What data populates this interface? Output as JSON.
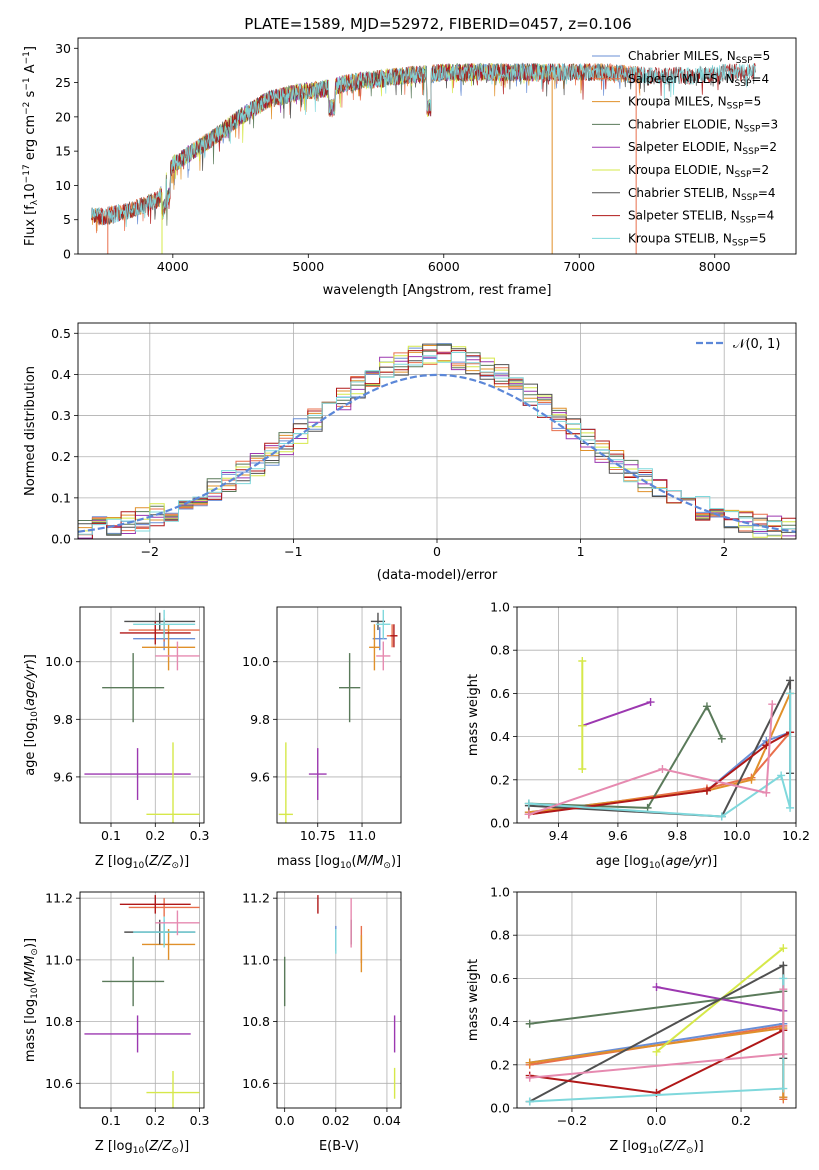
{
  "figure_title": "PLATE=1589, MJD=52972, FIBERID=0457, z=0.106",
  "colors": {
    "Chabrier MILES": "#6a8fd6",
    "Salpeter MILES": "#e86f4c",
    "Kroupa MILES": "#e0902a",
    "Chabrier ELODIE": "#5a7a5a",
    "Salpeter ELODIE": "#9c38b0",
    "Kroupa ELODIE": "#d6e84a",
    "Chabrier STELIB": "#505050",
    "Salpeter STELIB": "#b01818",
    "Kroupa STELIB": "#7fd8dc",
    "extra_pink": "#e68ab0",
    "normal_curve": "#5b87d8"
  },
  "chart_data": [
    {
      "id": "spectrum",
      "type": "line",
      "xlabel": "wavelength [Angstrom, rest frame]",
      "ylabel": "Flux [f_λ 10^-17 erg cm^-2 s^-1 A^-1]",
      "xlim": [
        3300,
        8600
      ],
      "ylim": [
        0,
        31.5
      ],
      "xticks": [
        4000,
        5000,
        6000,
        7000,
        8000
      ],
      "yticks": [
        0,
        5,
        10,
        15,
        20,
        25,
        30
      ],
      "grid": false,
      "legend_position": "top-right",
      "continuum": {
        "x": [
          3500,
          3700,
          3900,
          4000,
          4150,
          4300,
          4500,
          4700,
          4900,
          5100,
          5300,
          5500,
          5700,
          6000,
          6300,
          6600,
          6900,
          7200,
          7500,
          7800,
          8100,
          8300
        ],
        "y": [
          5.5,
          6.5,
          8,
          13,
          15,
          17,
          20,
          22.5,
          23.5,
          24,
          25,
          25.5,
          26,
          26.5,
          26.5,
          26.5,
          26.5,
          26.5,
          26,
          26,
          26.5,
          26.5
        ]
      },
      "series": [
        {
          "name": "Chabrier MILES, N_SSP=5",
          "label_main": "Chabrier MILES, N",
          "label_sub": "SSP",
          "label_tail": "=5",
          "color_key": "Chabrier MILES",
          "x_range": [
            3400,
            7450
          ]
        },
        {
          "name": "Salpeter MILES, N_SSP=4",
          "label_main": "Salpeter MILES, N",
          "label_sub": "SSP",
          "label_tail": "=4",
          "color_key": "Salpeter MILES",
          "x_range": [
            3400,
            7450
          ]
        },
        {
          "name": "Kroupa MILES, N_SSP=5",
          "label_main": "Kroupa MILES, N",
          "label_sub": "SSP",
          "label_tail": "=5",
          "color_key": "Kroupa MILES",
          "x_range": [
            3400,
            7450
          ]
        },
        {
          "name": "Chabrier ELODIE, N_SSP=3",
          "label_main": "Chabrier ELODIE, N",
          "label_sub": "SSP",
          "label_tail": "=3",
          "color_key": "Chabrier ELODIE",
          "x_range": [
            3900,
            6800
          ]
        },
        {
          "name": "Salpeter ELODIE, N_SSP=2",
          "label_main": "Salpeter ELODIE, N",
          "label_sub": "SSP",
          "label_tail": "=2",
          "color_key": "Salpeter ELODIE",
          "x_range": [
            3900,
            6800
          ]
        },
        {
          "name": "Kroupa ELODIE, N_SSP=2",
          "label_main": "Kroupa ELODIE, N",
          "label_sub": "SSP",
          "label_tail": "=2",
          "color_key": "Kroupa ELODIE",
          "x_range": [
            3900,
            6800
          ]
        },
        {
          "name": "Chabrier STELIB, N_SSP=4",
          "label_main": "Chabrier STELIB, N",
          "label_sub": "SSP",
          "label_tail": "=4",
          "color_key": "Chabrier STELIB",
          "x_range": [
            3400,
            8300
          ]
        },
        {
          "name": "Salpeter STELIB, N_SSP=4",
          "label_main": "Salpeter STELIB, N",
          "label_sub": "SSP",
          "label_tail": "=4",
          "color_key": "Salpeter STELIB",
          "x_range": [
            3400,
            8300
          ]
        },
        {
          "name": "Kroupa STELIB, N_SSP=5",
          "label_main": "Kroupa STELIB, N",
          "label_sub": "SSP",
          "label_tail": "=5",
          "color_key": "Kroupa STELIB",
          "x_range": [
            3400,
            8300
          ]
        }
      ]
    },
    {
      "id": "residuals",
      "type": "line",
      "xlabel": "(data-model)/error",
      "ylabel": "Normed distribution",
      "xlim": [
        -2.5,
        2.5
      ],
      "ylim": [
        0,
        0.525
      ],
      "xticks": [
        -2,
        -1,
        0,
        1,
        2
      ],
      "yticks": [
        0.0,
        0.1,
        0.2,
        0.3,
        0.4,
        0.5
      ],
      "grid": true,
      "legend_position": "top-right",
      "legend_label": "𝒩(0, 1)",
      "bin_width": 0.1,
      "histogram_series": [
        "Chabrier MILES",
        "Salpeter MILES",
        "Kroupa MILES",
        "Chabrier ELODIE",
        "Salpeter ELODIE",
        "Kroupa ELODIE",
        "Chabrier STELIB",
        "Salpeter STELIB",
        "Kroupa STELIB"
      ]
    },
    {
      "id": "age_vs_Z",
      "type": "scatter",
      "xlabel": "Z [log10(Z/Z⊙)]",
      "ylabel": "age [log10(age/yr)]",
      "xlim": [
        0.03,
        0.31
      ],
      "ylim": [
        9.44,
        10.19
      ],
      "xticks": [
        0.1,
        0.2,
        0.3
      ],
      "yticks": [
        9.6,
        9.8,
        10.0
      ],
      "grid": true,
      "points": [
        {
          "key": "Chabrier MILES",
          "x": 0.22,
          "y": 10.08,
          "xerr": 0.07,
          "yerr": 0.04
        },
        {
          "key": "Salpeter MILES",
          "x": 0.22,
          "y": 10.11,
          "xerr": 0.08,
          "yerr": 0.04
        },
        {
          "key": "Kroupa MILES",
          "x": 0.23,
          "y": 10.05,
          "xerr": 0.06,
          "yerr": 0.08
        },
        {
          "key": "Chabrier ELODIE",
          "x": 0.15,
          "y": 9.91,
          "xerr": 0.07,
          "yerr": 0.12
        },
        {
          "key": "Salpeter ELODIE",
          "x": 0.16,
          "y": 9.61,
          "xerr": 0.12,
          "yerr": 0.09
        },
        {
          "key": "Kroupa ELODIE",
          "x": 0.24,
          "y": 9.47,
          "xerr": 0.06,
          "yerr": 0.25
        },
        {
          "key": "Chabrier STELIB",
          "x": 0.21,
          "y": 10.14,
          "xerr": 0.08,
          "yerr": 0.03
        },
        {
          "key": "Salpeter STELIB",
          "x": 0.2,
          "y": 10.1,
          "xerr": 0.08,
          "yerr": 0.04
        },
        {
          "key": "Kroupa STELIB",
          "x": 0.22,
          "y": 10.13,
          "xerr": 0.07,
          "yerr": 0.05
        },
        {
          "key": "extra_pink",
          "x": 0.25,
          "y": 10.02,
          "xerr": 0.05,
          "yerr": 0.05
        }
      ]
    },
    {
      "id": "age_vs_mass",
      "type": "scatter",
      "xlabel": "mass [log10(M/M⊙)]",
      "ylabel": "",
      "xlim": [
        10.52,
        11.22
      ],
      "ylim": [
        9.44,
        10.19
      ],
      "xticks": [
        10.75,
        11.0
      ],
      "yticks": [
        9.6,
        9.8,
        10.0
      ],
      "grid": true,
      "points": [
        {
          "key": "Chabrier MILES",
          "x": 11.1,
          "y": 10.08,
          "xerr": 0.04,
          "yerr": 0.04
        },
        {
          "key": "Salpeter MILES",
          "x": 11.17,
          "y": 10.09,
          "xerr": 0.03,
          "yerr": 0.04
        },
        {
          "key": "Kroupa MILES",
          "x": 11.07,
          "y": 10.05,
          "xerr": 0.03,
          "yerr": 0.08
        },
        {
          "key": "Chabrier ELODIE",
          "x": 10.93,
          "y": 9.91,
          "xerr": 0.06,
          "yerr": 0.12
        },
        {
          "key": "Salpeter ELODIE",
          "x": 10.75,
          "y": 9.61,
          "xerr": 0.05,
          "yerr": 0.09
        },
        {
          "key": "Kroupa ELODIE",
          "x": 10.57,
          "y": 9.47,
          "xerr": 0.04,
          "yerr": 0.25
        },
        {
          "key": "Chabrier STELIB",
          "x": 11.09,
          "y": 10.14,
          "xerr": 0.04,
          "yerr": 0.03
        },
        {
          "key": "Salpeter STELIB",
          "x": 11.18,
          "y": 10.09,
          "xerr": 0.02,
          "yerr": 0.04
        },
        {
          "key": "Kroupa STELIB",
          "x": 11.12,
          "y": 10.13,
          "xerr": 0.04,
          "yerr": 0.05
        },
        {
          "key": "extra_pink",
          "x": 11.12,
          "y": 10.02,
          "xerr": 0.04,
          "yerr": 0.05
        }
      ]
    },
    {
      "id": "massweight_vs_age",
      "type": "line",
      "xlabel": "age [log10(age/yr)]",
      "ylabel": "mass weight",
      "xlim": [
        9.26,
        10.2
      ],
      "ylim": [
        0,
        1.0
      ],
      "xticks": [
        9.4,
        9.6,
        9.8,
        10.0,
        10.2
      ],
      "yticks": [
        0.0,
        0.2,
        0.4,
        0.6,
        0.8,
        1.0
      ],
      "grid": true,
      "series": [
        {
          "key": "Chabrier MILES",
          "x": [
            9.3,
            9.9,
            10.1,
            10.18
          ],
          "y": [
            0.05,
            0.15,
            0.38,
            0.42
          ]
        },
        {
          "key": "Salpeter MILES",
          "x": [
            9.3,
            9.9,
            10.05,
            10.18
          ],
          "y": [
            0.04,
            0.16,
            0.21,
            0.42
          ]
        },
        {
          "key": "Kroupa MILES",
          "x": [
            9.3,
            9.9,
            10.05,
            10.18
          ],
          "y": [
            0.05,
            0.15,
            0.2,
            0.6
          ]
        },
        {
          "key": "Chabrier ELODIE",
          "x": [
            9.3,
            9.7,
            9.9,
            9.95
          ],
          "y": [
            0.09,
            0.07,
            0.54,
            0.39
          ]
        },
        {
          "key": "Salpeter ELODIE",
          "x": [
            9.48,
            9.71
          ],
          "y": [
            0.45,
            0.56
          ]
        },
        {
          "key": "Kroupa ELODIE",
          "x": [
            9.48,
            9.48,
            9.48
          ],
          "y": [
            0.25,
            0.45,
            0.75
          ]
        },
        {
          "key": "Chabrier STELIB",
          "x": [
            9.3,
            9.95,
            10.18,
            10.18
          ],
          "y": [
            0.08,
            0.03,
            0.66,
            0.23
          ]
        },
        {
          "key": "Salpeter STELIB",
          "x": [
            9.3,
            9.9,
            10.1,
            10.18
          ],
          "y": [
            0.04,
            0.15,
            0.36,
            0.42
          ]
        },
        {
          "key": "Kroupa STELIB",
          "x": [
            9.3,
            9.95,
            10.15,
            10.18,
            10.18
          ],
          "y": [
            0.09,
            0.03,
            0.22,
            0.07,
            0.6
          ]
        },
        {
          "key": "extra_pink",
          "x": [
            9.3,
            9.75,
            10.1,
            10.12
          ],
          "y": [
            0.04,
            0.25,
            0.14,
            0.55
          ]
        }
      ]
    },
    {
      "id": "mass_vs_Z",
      "type": "scatter",
      "xlabel": "Z [log10(Z/Z⊙)]",
      "ylabel": "mass [log10(M/M⊙)]",
      "xlim": [
        0.03,
        0.31
      ],
      "ylim": [
        10.52,
        11.22
      ],
      "xticks": [
        0.1,
        0.2,
        0.3
      ],
      "yticks": [
        10.6,
        10.8,
        11.0,
        11.2
      ],
      "grid": true,
      "points": [
        {
          "key": "Chabrier MILES",
          "x": 0.22,
          "y": 11.09,
          "xerr": 0.07,
          "yerr": 0.04
        },
        {
          "key": "Salpeter MILES",
          "x": 0.22,
          "y": 11.17,
          "xerr": 0.08,
          "yerr": 0.03
        },
        {
          "key": "Kroupa MILES",
          "x": 0.23,
          "y": 11.05,
          "xerr": 0.06,
          "yerr": 0.05
        },
        {
          "key": "Chabrier ELODIE",
          "x": 0.15,
          "y": 10.93,
          "xerr": 0.07,
          "yerr": 0.08
        },
        {
          "key": "Salpeter ELODIE",
          "x": 0.16,
          "y": 10.76,
          "xerr": 0.12,
          "yerr": 0.06
        },
        {
          "key": "Kroupa ELODIE",
          "x": 0.24,
          "y": 10.57,
          "xerr": 0.06,
          "yerr": 0.07
        },
        {
          "key": "Chabrier STELIB",
          "x": 0.21,
          "y": 11.09,
          "xerr": 0.08,
          "yerr": 0.04
        },
        {
          "key": "Salpeter STELIB",
          "x": 0.2,
          "y": 11.18,
          "xerr": 0.08,
          "yerr": 0.03
        },
        {
          "key": "Kroupa STELIB",
          "x": 0.22,
          "y": 11.09,
          "xerr": 0.07,
          "yerr": 0.05
        },
        {
          "key": "extra_pink",
          "x": 0.25,
          "y": 11.12,
          "xerr": 0.05,
          "yerr": 0.04
        }
      ]
    },
    {
      "id": "mass_vs_ebv",
      "type": "scatter",
      "xlabel": "E(B-V)",
      "ylabel": "",
      "xlim": [
        -0.003,
        0.0455
      ],
      "ylim": [
        10.52,
        11.22
      ],
      "xticks": [
        0.0,
        0.02,
        0.04
      ],
      "yticks": [
        10.6,
        10.8,
        11.0,
        11.2
      ],
      "grid": true,
      "points": [
        {
          "key": "Chabrier MILES",
          "x": 0.02,
          "y": 11.07,
          "xerr": 0,
          "yerr": 0.04
        },
        {
          "key": "Salpeter MILES",
          "x": 0.03,
          "y": 11.05,
          "xerr": 0,
          "yerr": 0.06
        },
        {
          "key": "Kroupa MILES",
          "x": 0.03,
          "y": 11.02,
          "xerr": 0,
          "yerr": 0.06
        },
        {
          "key": "Chabrier ELODIE",
          "x": 0.0,
          "y": 10.93,
          "xerr": 0,
          "yerr": 0.08
        },
        {
          "key": "Salpeter ELODIE",
          "x": 0.043,
          "y": 10.76,
          "xerr": 0,
          "yerr": 0.06
        },
        {
          "key": "Kroupa ELODIE",
          "x": 0.043,
          "y": 10.6,
          "xerr": 0,
          "yerr": 0.05
        },
        {
          "key": "Chabrier STELIB",
          "x": 0.026,
          "y": 11.09,
          "xerr": 0,
          "yerr": 0.04
        },
        {
          "key": "Salpeter STELIB",
          "x": 0.013,
          "y": 11.18,
          "xerr": 0,
          "yerr": 0.03
        },
        {
          "key": "Kroupa STELIB",
          "x": 0.02,
          "y": 11.06,
          "xerr": 0,
          "yerr": 0.04
        },
        {
          "key": "extra_pink",
          "x": 0.026,
          "y": 11.12,
          "xerr": 0,
          "yerr": 0.08
        }
      ]
    },
    {
      "id": "massweight_vs_Z",
      "type": "line",
      "xlabel": "Z [log10(Z/Z⊙)]",
      "ylabel": "mass weight",
      "xlim": [
        -0.33,
        0.33
      ],
      "ylim": [
        0,
        1.0
      ],
      "xticks": [
        -0.2,
        0.0,
        0.2
      ],
      "yticks": [
        0.0,
        0.2,
        0.4,
        0.6,
        0.8,
        1.0
      ],
      "grid": true,
      "series": [
        {
          "key": "Chabrier MILES",
          "x": [
            -0.3,
            0.3,
            0.3
          ],
          "y": [
            0.21,
            0.39,
            0.05
          ]
        },
        {
          "key": "Salpeter MILES",
          "x": [
            -0.3,
            0.3,
            0.3
          ],
          "y": [
            0.2,
            0.38,
            0.04
          ]
        },
        {
          "key": "Kroupa MILES",
          "x": [
            -0.3,
            0.3,
            0.3
          ],
          "y": [
            0.21,
            0.37,
            0.05
          ]
        },
        {
          "key": "Chabrier ELODIE",
          "x": [
            -0.3,
            0.3
          ],
          "y": [
            0.39,
            0.54
          ]
        },
        {
          "key": "Salpeter ELODIE",
          "x": [
            0.0,
            0.3
          ],
          "y": [
            0.56,
            0.45
          ]
        },
        {
          "key": "Kroupa ELODIE",
          "x": [
            0.0,
            0.3
          ],
          "y": [
            0.26,
            0.74
          ]
        },
        {
          "key": "Chabrier STELIB",
          "x": [
            -0.3,
            0.3,
            0.3
          ],
          "y": [
            0.03,
            0.66,
            0.23
          ]
        },
        {
          "key": "Salpeter STELIB",
          "x": [
            -0.3,
            0.0,
            0.3
          ],
          "y": [
            0.15,
            0.07,
            0.36
          ]
        },
        {
          "key": "Kroupa STELIB",
          "x": [
            -0.3,
            0.3,
            0.3
          ],
          "y": [
            0.03,
            0.09,
            0.6
          ]
        },
        {
          "key": "extra_pink",
          "x": [
            -0.3,
            0.3,
            0.3
          ],
          "y": [
            0.14,
            0.25,
            0.55
          ]
        }
      ]
    }
  ]
}
